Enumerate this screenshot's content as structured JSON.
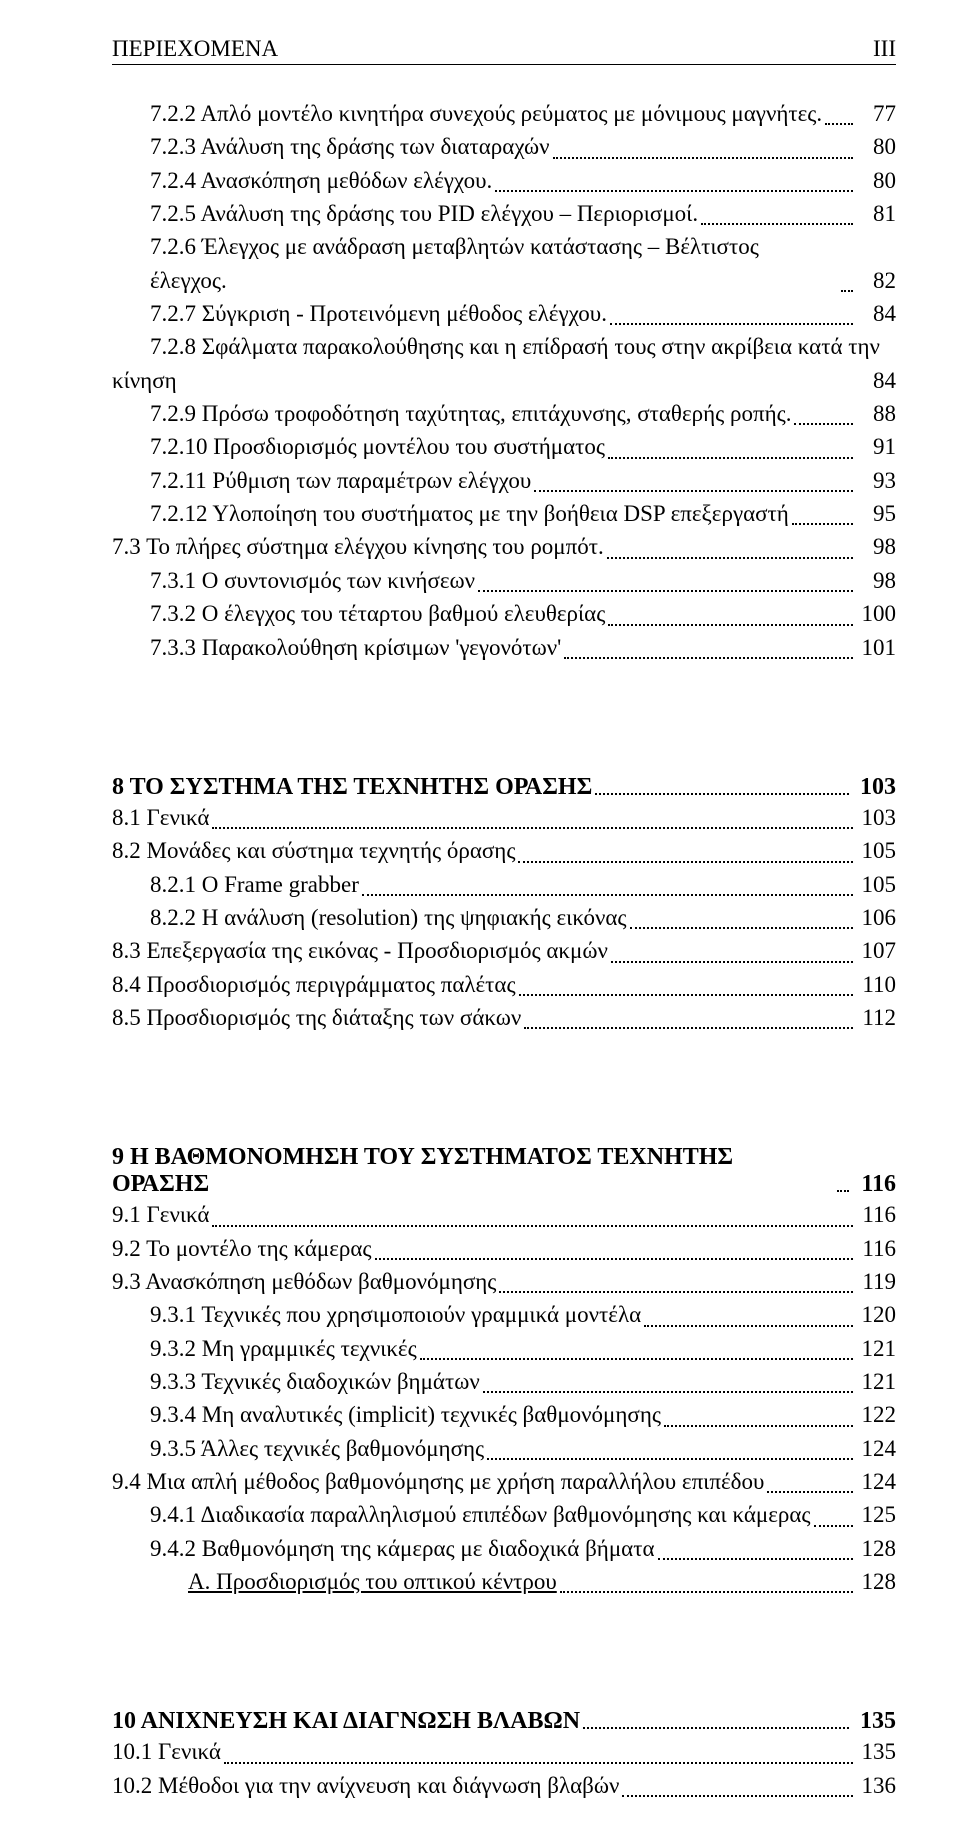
{
  "header": {
    "left": "ΠΕΡΙΕΧΟΜΕΝΑ",
    "right": "III"
  },
  "blocks": [
    {
      "title": null,
      "entries": [
        {
          "level": 2,
          "num": "7.2.2",
          "text": "Απλό μοντέλο κινητήρα συνεχούς ρεύματος με μόνιμους μαγνήτες.",
          "page": "77"
        },
        {
          "level": 2,
          "num": "7.2.3",
          "text": "Ανάλυση της δράσης των διαταραχών",
          "page": "80"
        },
        {
          "level": 2,
          "num": "7.2.4",
          "text": "Ανασκόπηση μεθόδων ελέγχου.",
          "page": "80"
        },
        {
          "level": 2,
          "num": "7.2.5",
          "text": "Ανάλυση της δράσης του PID ελέγχου – Περιορισμοί.",
          "page": "81"
        },
        {
          "level": 2,
          "num": "7.2.6",
          "text": "Έλεγχος με ανάδραση μεταβλητών κατάστασης – Βέλτιστος έλεγχος.",
          "page": "82"
        },
        {
          "level": 2,
          "num": "7.2.7",
          "text": "Σύγκριση  - Προτεινόμενη μέθοδος ελέγχου.",
          "page": "84"
        },
        {
          "level": 2,
          "num": "7.2.8",
          "two": true,
          "text1": "Σφάλματα παρακολούθησης και η επίδρασή τους στην ακρίβεια κατά την",
          "text2": "κίνηση",
          "page": "84",
          "sparse": true,
          "second_no_indent": true
        },
        {
          "level": 2,
          "num": "7.2.9",
          "text": "Πρόσω τροφοδότηση ταχύτητας, επιτάχυνσης, σταθερής ροπής.",
          "page": "88"
        },
        {
          "level": 2,
          "num": "7.2.10",
          "text": "Προσδιορισμός μοντέλου του συστήματος",
          "page": "91"
        },
        {
          "level": 2,
          "num": "7.2.11",
          "text": "Ρύθμιση των παραμέτρων ελέγχου",
          "page": "93"
        },
        {
          "level": 2,
          "num": "7.2.12",
          "text": "Υλοποίηση του συστήματος με την βοήθεια DSP επεξεργαστή",
          "page": "95"
        },
        {
          "level": 1,
          "num": "7.3",
          "text": "Το πλήρες σύστημα ελέγχου κίνησης του ρομπότ.",
          "page": "98"
        },
        {
          "level": 2,
          "num": "7.3.1",
          "text": "Ο συντονισμός των κινήσεων",
          "page": "98"
        },
        {
          "level": 2,
          "num": "7.3.2",
          "text": "Ο έλεγχος του τέταρτου βαθμού ελευθερίας",
          "page": "100"
        },
        {
          "level": 2,
          "num": "7.3.3",
          "text": "Παρακολούθηση  κρίσιμων 'γεγονότων'",
          "page": "101"
        }
      ]
    },
    {
      "title": {
        "text": "8 ΤΟ ΣΥΣΤΗΜΑ ΤΗΣ ΤΕΧΝΗΤΗΣ ΟΡΑΣΗΣ",
        "page": "103"
      },
      "entries": [
        {
          "level": 1,
          "num": "8.1",
          "text": "Γενικά",
          "page": "103"
        },
        {
          "level": 1,
          "num": "8.2",
          "text": "Μονάδες και σύστημα τεχνητής όρασης",
          "page": "105"
        },
        {
          "level": 2,
          "num": "8.2.1",
          "text": "Ο Frame grabber",
          "page": "105"
        },
        {
          "level": 2,
          "num": "8.2.2",
          "text": "Η ανάλυση (resolution) της ψηφιακής εικόνας",
          "page": "106"
        },
        {
          "level": 1,
          "num": "8.3",
          "text": "Επεξεργασία της εικόνας - Προσδιορισμός ακμών",
          "page": "107"
        },
        {
          "level": 1,
          "num": "8.4",
          "text": "Προσδιορισμός περιγράμματος παλέτας",
          "page": "110"
        },
        {
          "level": 1,
          "num": "8.5",
          "text": "Προσδιορισμός της διάταξης των σάκων",
          "page": "112"
        }
      ]
    },
    {
      "title": {
        "text": "9 Η ΒΑΘΜΟΝΟΜΗΣΗ ΤΟΥ ΣΥΣΤΗΜΑΤΟΣ ΤΕΧΝΗΤΗΣ ΟΡΑΣΗΣ",
        "page": "116"
      },
      "entries": [
        {
          "level": 1,
          "num": "9.1",
          "text": "Γενικά",
          "page": "116"
        },
        {
          "level": 1,
          "num": "9.2",
          "text": "Το μοντέλο της κάμερας",
          "page": "116"
        },
        {
          "level": 1,
          "num": "9.3",
          "text": "Ανασκόπηση μεθόδων βαθμονόμησης",
          "page": "119"
        },
        {
          "level": 2,
          "num": "9.3.1",
          "text": "Τεχνικές που χρησιμοποιούν γραμμικά μοντέλα",
          "page": "120"
        },
        {
          "level": 2,
          "num": "9.3.2",
          "text": "Μη γραμμικές τεχνικές",
          "page": "121"
        },
        {
          "level": 2,
          "num": "9.3.3",
          "text": "Τεχνικές  διαδοχικών βημάτων",
          "page": "121"
        },
        {
          "level": 2,
          "num": "9.3.4",
          "text": "Μη αναλυτικές (implicit) τεχνικές  βαθμονόμησης",
          "page": "122"
        },
        {
          "level": 2,
          "num": "9.3.5",
          "text": "Άλλες τεχνικές βαθμονόμησης",
          "page": "124"
        },
        {
          "level": 1,
          "num": "9.4",
          "text": "Μια απλή μέθοδος  βαθμονόμησης με χρήση παραλλήλου επιπέδου",
          "page": "124"
        },
        {
          "level": 2,
          "num": "9.4.1",
          "text": "Διαδικασία παραλληλισμού επιπέδων βαθμονόμησης και κάμερας",
          "page": "125"
        },
        {
          "level": 2,
          "num": "9.4.2",
          "text": "Βαθμονόμηση της κάμερας με διαδοχικά βήματα",
          "page": "128"
        },
        {
          "level": 3,
          "num": "",
          "text": "Α. Προσδιορισμός του οπτικού κέντρου",
          "page": "128",
          "underline": true
        }
      ]
    },
    {
      "title": {
        "text": "10 ΑΝΙΧΝΕΥΣΗ ΚΑΙ ΔΙΑΓΝΩΣΗ ΒΛΑΒΩΝ",
        "page": "135"
      },
      "entries": [
        {
          "level": 1,
          "num": "10.1",
          "text": "Γενικά",
          "page": "135"
        },
        {
          "level": 1,
          "num": "10.2",
          "text": "Μέθοδοι για την ανίχνευση και  διάγνωση βλαβών",
          "page": "136"
        }
      ]
    }
  ]
}
